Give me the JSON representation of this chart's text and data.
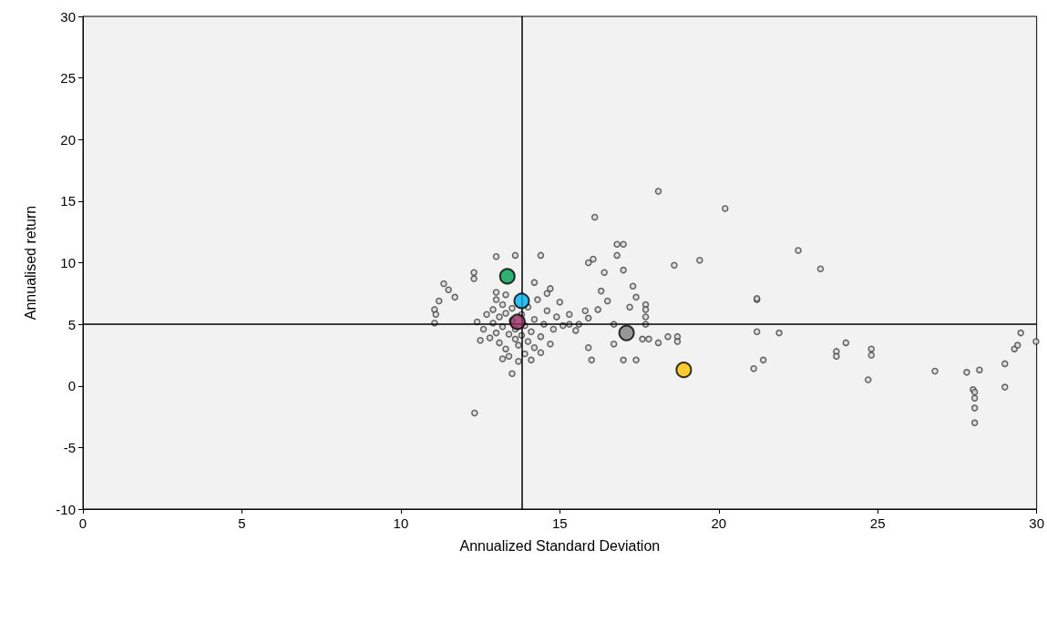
{
  "chart_data": {
    "type": "scatter",
    "xlabel": "Annualized Standard Deviation",
    "ylabel": "Annualised return",
    "xlim": [
      0,
      30
    ],
    "xticks": [
      0,
      5,
      10,
      15,
      20,
      25,
      30
    ],
    "ylim": [
      -10,
      30
    ],
    "yticks": [
      -10,
      -5,
      0,
      5,
      10,
      15,
      20,
      25,
      30
    ],
    "grid": false,
    "marker": "circle",
    "ref_lines": [
      {
        "axis": "x",
        "value": 13.8,
        "color": "#000000"
      },
      {
        "axis": "y",
        "value": 5,
        "color": "#000000"
      }
    ],
    "series": [
      {
        "color": "#404040",
        "x": [
          12.32,
          13.0,
          12.3,
          12.3,
          11.06,
          11.1,
          11.06,
          11.35,
          11.5,
          11.2,
          11.7,
          13.6,
          14.4,
          14.2,
          14.7,
          16.05,
          16.1,
          18.1,
          20.2,
          22.5,
          23.2,
          18.6,
          19.4,
          16.8,
          17.0,
          16.8,
          17.0,
          16.4,
          15.9,
          16.3,
          17.3,
          17.4,
          17.2,
          16.5,
          15.8,
          15.9,
          16.2,
          17.7,
          17.7,
          17.7,
          17.7,
          18.4,
          18.7,
          18.7,
          18.1,
          17.8,
          17.6,
          16.7,
          17.0,
          17.4,
          16.0,
          15.9,
          21.2,
          21.2,
          21.2,
          21.9,
          21.1,
          21.4,
          23.7,
          23.7,
          24.0,
          24.8,
          24.8,
          24.7,
          26.8,
          27.8,
          28.2,
          28.0,
          28.05,
          28.05,
          28.05,
          28.05,
          29.0,
          29.0,
          29.3,
          29.4,
          29.5,
          29.98,
          12.6,
          12.7,
          12.8,
          12.9,
          12.9,
          13.0,
          13.0,
          13.1,
          13.1,
          13.2,
          13.2,
          13.3,
          13.3,
          13.3,
          13.4,
          13.4,
          13.5,
          13.5,
          13.5,
          13.6,
          13.6,
          13.7,
          13.7,
          13.8,
          13.8,
          13.9,
          13.9,
          14.0,
          14.0,
          14.1,
          14.1,
          14.2,
          14.2,
          14.3,
          14.4,
          14.4,
          14.5,
          14.6,
          14.7,
          14.8,
          14.9,
          15.0,
          15.1,
          15.3,
          15.5,
          12.5,
          12.4,
          13.2,
          14.6,
          13.0,
          15.3,
          15.6,
          16.7
        ],
        "values": [
          -2.2,
          10.5,
          9.2,
          8.7,
          6.2,
          5.8,
          5.1,
          8.3,
          7.8,
          6.9,
          7.2,
          10.6,
          10.6,
          8.4,
          7.9,
          10.3,
          13.7,
          15.8,
          14.4,
          11.0,
          9.5,
          9.8,
          10.2,
          11.5,
          11.5,
          10.6,
          9.4,
          9.2,
          10.0,
          7.7,
          8.1,
          7.2,
          6.4,
          6.9,
          6.1,
          5.5,
          6.2,
          6.6,
          6.2,
          5.6,
          5.0,
          4.0,
          4.0,
          3.6,
          3.5,
          3.8,
          3.8,
          3.4,
          2.1,
          2.1,
          2.1,
          3.1,
          7.0,
          7.1,
          4.4,
          4.3,
          1.4,
          2.1,
          2.8,
          2.4,
          3.5,
          3.0,
          2.5,
          0.5,
          1.2,
          1.1,
          1.3,
          -0.3,
          -0.5,
          -1.0,
          -1.8,
          -3.0,
          1.8,
          -0.1,
          3.0,
          3.3,
          4.3,
          3.6,
          4.6,
          5.8,
          3.9,
          6.2,
          5.1,
          4.3,
          7.0,
          3.5,
          5.6,
          6.6,
          4.8,
          3.0,
          5.9,
          7.4,
          4.2,
          2.4,
          5.3,
          1.0,
          6.3,
          3.8,
          4.6,
          2.0,
          3.3,
          4.1,
          5.8,
          2.6,
          4.9,
          3.6,
          6.4,
          2.1,
          4.4,
          5.4,
          3.1,
          7.0,
          4.0,
          2.7,
          5.0,
          6.1,
          3.4,
          4.6,
          5.6,
          6.8,
          4.9,
          5.8,
          4.5,
          3.7,
          5.2,
          2.2,
          7.5,
          7.6,
          5.0,
          5.0,
          5.0
        ]
      },
      {
        "color": "#808080",
        "x": [
          17.1
        ],
        "values": [
          4.3
        ]
      },
      {
        "color": "#ffc000",
        "x": [
          18.9
        ],
        "values": [
          1.3
        ]
      },
      {
        "color": "#953163",
        "x": [
          13.67
        ],
        "values": [
          5.2
        ]
      },
      {
        "color": "#00b0f0",
        "x": [
          13.8
        ],
        "values": [
          6.9
        ]
      },
      {
        "color": "#00a050",
        "x": [
          13.35
        ],
        "values": [
          8.9
        ]
      }
    ]
  }
}
